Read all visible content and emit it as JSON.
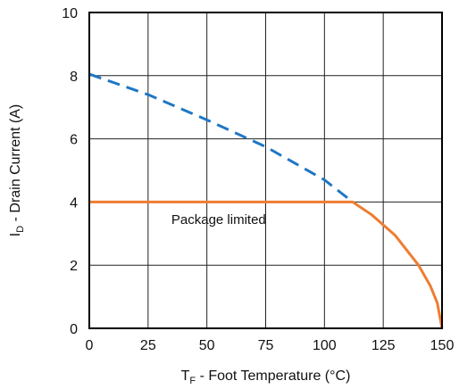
{
  "chart_data": {
    "type": "line",
    "x_axis": {
      "label_main": "T",
      "label_sub": "F",
      "label_rest": " - Foot Temperature (°C)",
      "range": [
        0,
        150
      ],
      "ticks": [
        0,
        25,
        50,
        75,
        100,
        125,
        150
      ],
      "tick_labels": [
        "0",
        "25",
        "50",
        "75",
        "100",
        "125",
        "150"
      ]
    },
    "y_axis": {
      "label_main": "I",
      "label_sub": "D",
      "label_rest": " - Drain Current (A)",
      "range": [
        0,
        10
      ],
      "ticks": [
        0,
        2,
        4,
        6,
        8,
        10
      ],
      "tick_labels": [
        "0",
        "2",
        "4",
        "6",
        "8",
        "10"
      ]
    },
    "grid": true,
    "annotation": {
      "text": "Package limited",
      "x": 55,
      "y": 3.3
    },
    "series": [
      {
        "style": "dashed",
        "color": "#1f77c4",
        "x": [
          0,
          25,
          50,
          75,
          100,
          112
        ],
        "y": [
          8.05,
          7.4,
          6.6,
          5.75,
          4.7,
          4.0
        ]
      },
      {
        "style": "solid",
        "color": "#ee7d31",
        "x": [
          0,
          112,
          120,
          130,
          140,
          145,
          148,
          150
        ],
        "y": [
          4.0,
          4.0,
          3.6,
          2.95,
          2.0,
          1.35,
          0.8,
          0.0
        ]
      }
    ]
  }
}
